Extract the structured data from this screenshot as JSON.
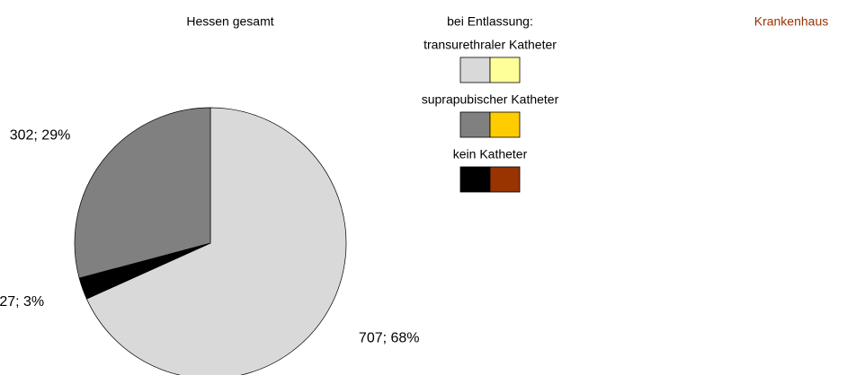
{
  "chart_data": {
    "type": "pie",
    "title": "Hessen gesamt",
    "second_title": "Krankenhaus",
    "values": [
      707,
      27,
      302
    ],
    "value_labels": [
      "707; 68%",
      "27; 3%",
      "302; 29%"
    ],
    "colors": [
      "#d9d9d9",
      "#000000",
      "#808080"
    ],
    "legend": {
      "title": "bei Entlassung:",
      "entries": [
        {
          "name": "transurethraler Katheter",
          "colors": [
            "#d9d9d9",
            "#ffff99"
          ]
        },
        {
          "name": "suprapubischer Katheter",
          "colors": [
            "#808080",
            "#ffcc00"
          ]
        },
        {
          "name": "kein Katheter",
          "colors": [
            "#000000",
            "#993300"
          ]
        }
      ]
    }
  }
}
